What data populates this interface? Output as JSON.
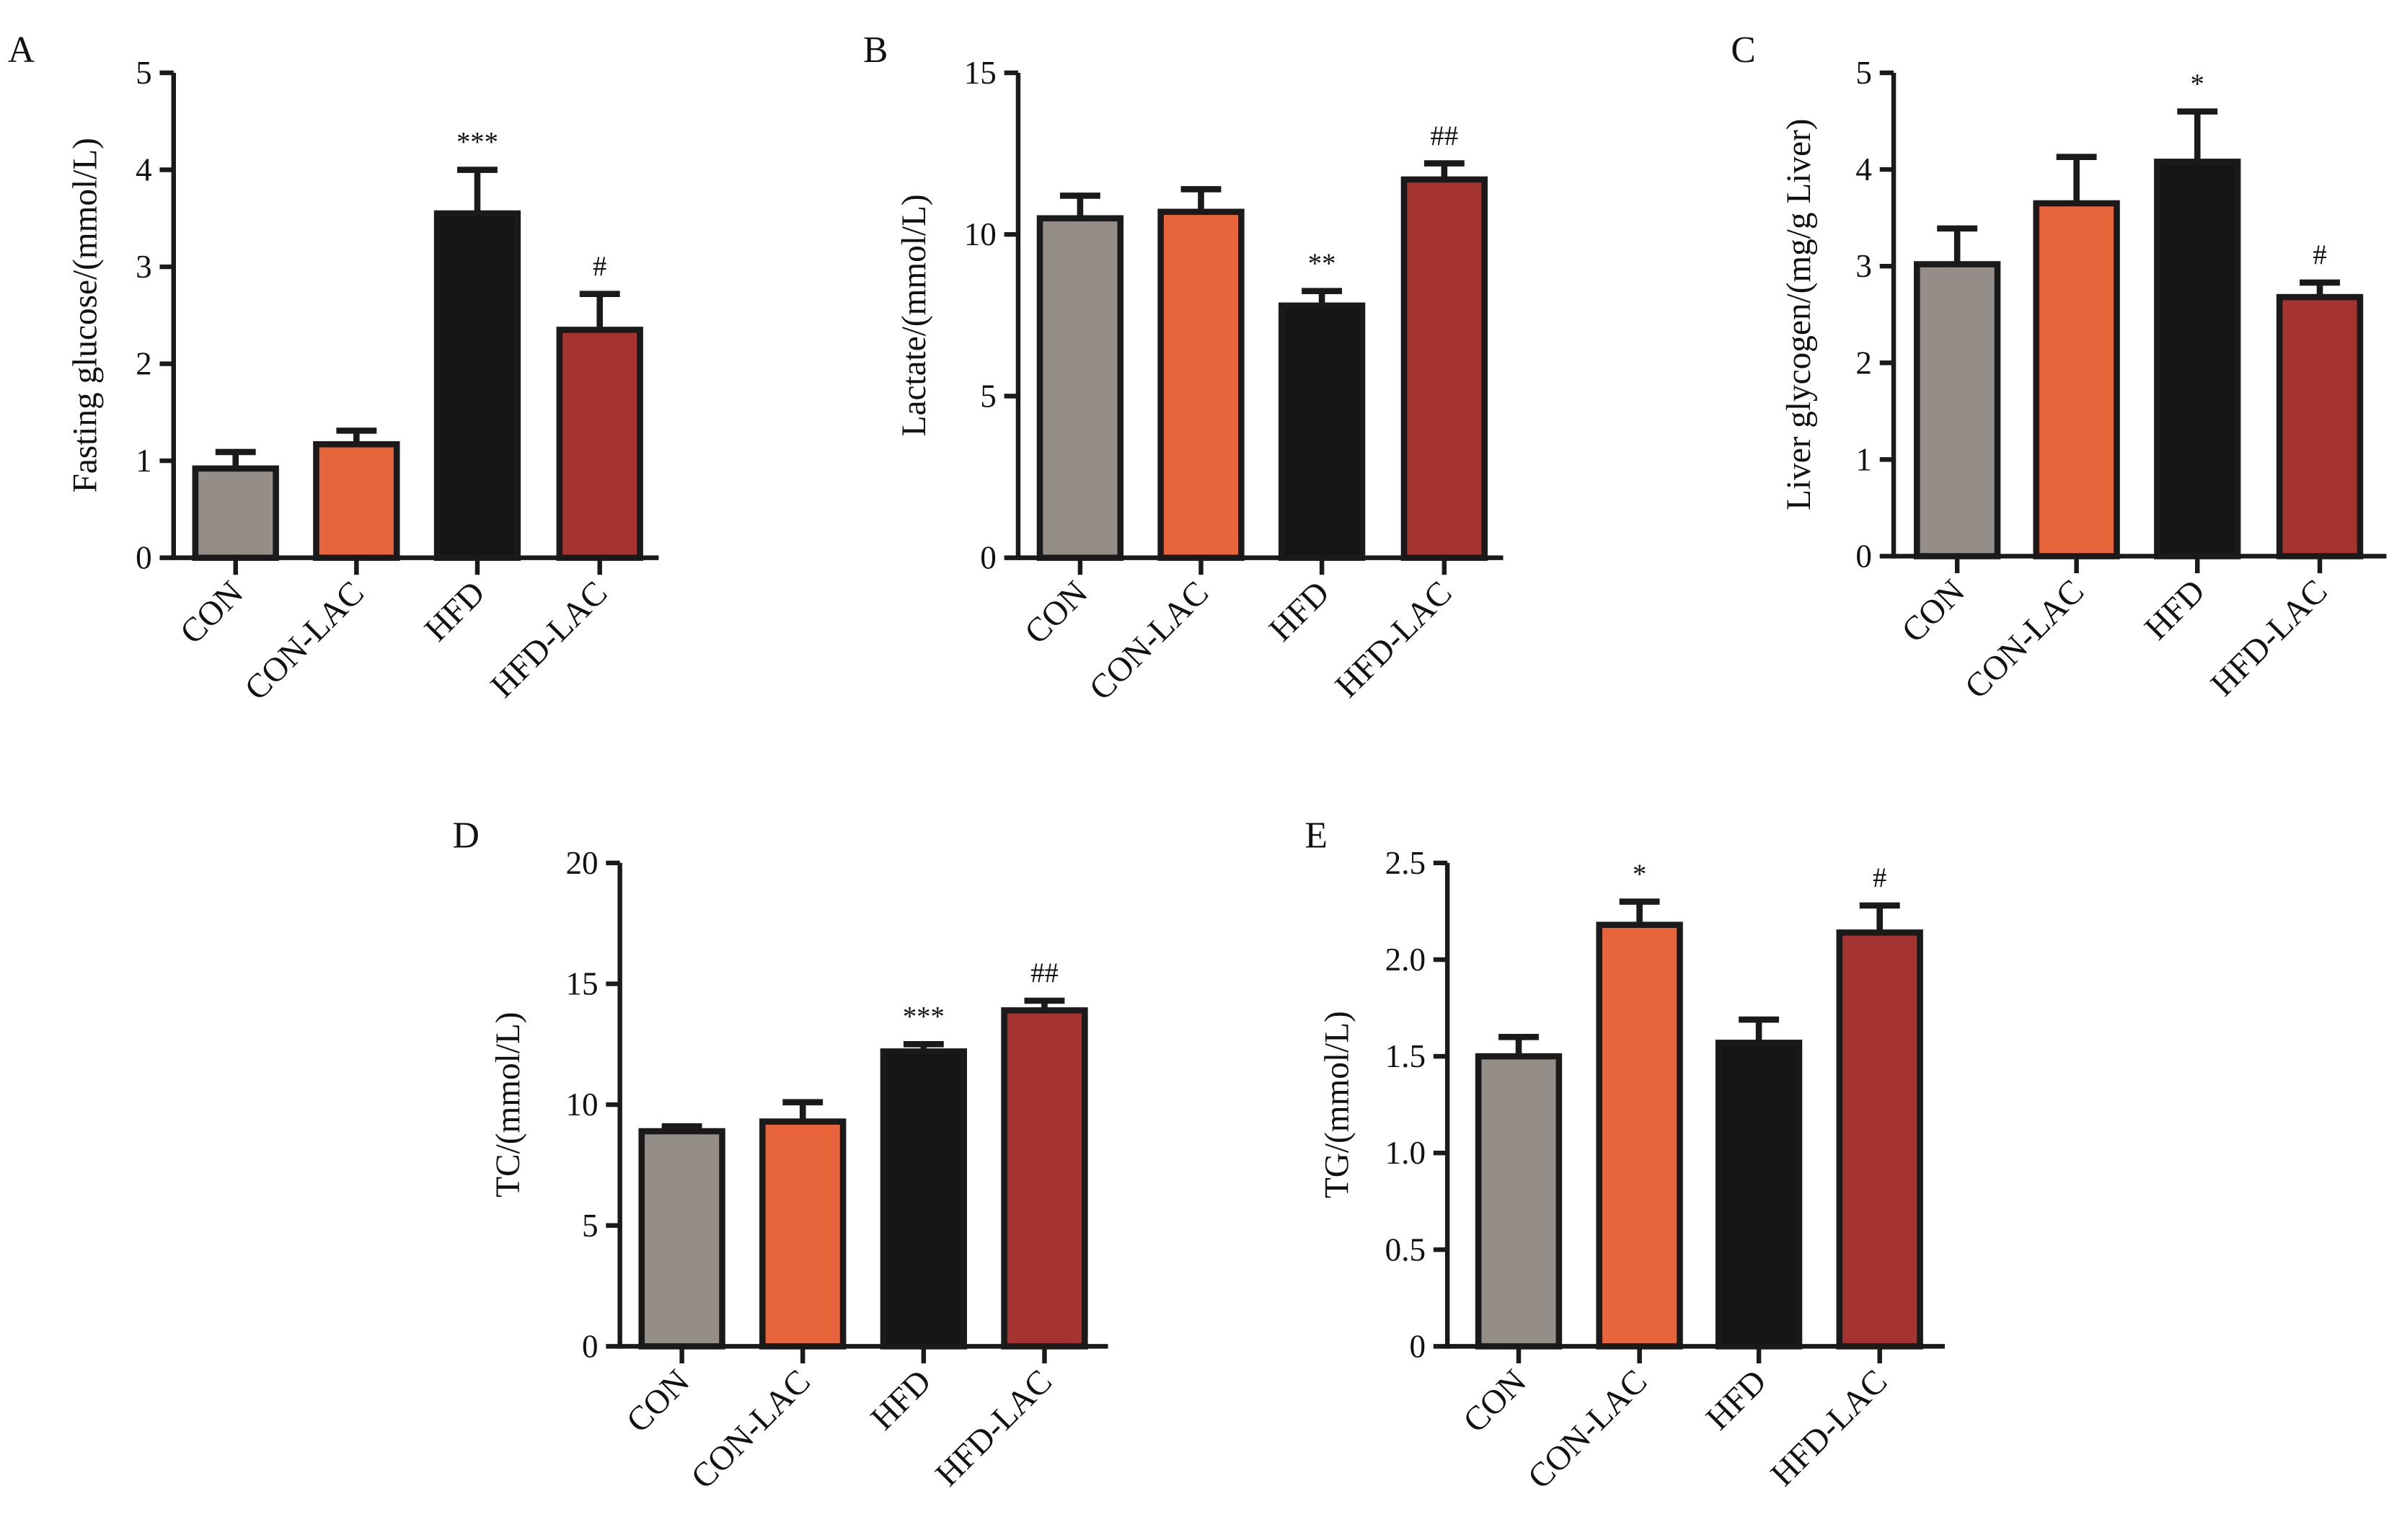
{
  "colors": {
    "CON": "#958d88",
    "CON-LAC": "#e8643a",
    "HFD": "#161514",
    "HFD-LAC": "#a53430",
    "outline": "#1a1a1a"
  },
  "chart_data": [
    {
      "type": "bar",
      "panel": "A",
      "ylabel": "Fasting glucose/(mmol/L)",
      "categories": [
        "CON",
        "CON-LAC",
        "HFD",
        "HFD-LAC"
      ],
      "values": [
        0.92,
        1.17,
        3.55,
        2.35
      ],
      "errors": [
        0.17,
        0.14,
        0.45,
        0.37
      ],
      "annotations": [
        "",
        "",
        "***",
        "#"
      ],
      "ylim": [
        0,
        5
      ],
      "yticks": [
        "0",
        "1",
        "2",
        "3",
        "4",
        "5"
      ],
      "grid": false
    },
    {
      "type": "bar",
      "panel": "B",
      "ylabel": "Lactate/(mmol/L)",
      "categories": [
        "CON",
        "CON-LAC",
        "HFD",
        "HFD-LAC"
      ],
      "values": [
        10.5,
        10.7,
        7.8,
        11.7
      ],
      "errors": [
        0.7,
        0.7,
        0.45,
        0.5
      ],
      "annotations": [
        "",
        "",
        "**",
        "##"
      ],
      "ylim": [
        0,
        15
      ],
      "yticks": [
        "0",
        "5",
        "10",
        "15"
      ],
      "grid": false
    },
    {
      "type": "bar",
      "panel": "C",
      "ylabel": "Liver glycogen/(mg/g Liver)",
      "categories": [
        "CON",
        "CON-LAC",
        "HFD",
        "HFD-LAC"
      ],
      "values": [
        3.02,
        3.65,
        4.08,
        2.68
      ],
      "errors": [
        0.37,
        0.48,
        0.52,
        0.15
      ],
      "annotations": [
        "",
        "",
        "*",
        "#"
      ],
      "ylim": [
        0,
        5
      ],
      "yticks": [
        "0",
        "1",
        "2",
        "3",
        "4",
        "5"
      ],
      "grid": false
    },
    {
      "type": "bar",
      "panel": "D",
      "ylabel": "TC/(mmol/L)",
      "categories": [
        "CON",
        "CON-LAC",
        "HFD",
        "HFD-LAC"
      ],
      "values": [
        8.9,
        9.3,
        12.2,
        13.9
      ],
      "errors": [
        0.2,
        0.8,
        0.3,
        0.4
      ],
      "annotations": [
        "",
        "",
        "***",
        "##"
      ],
      "ylim": [
        0,
        20
      ],
      "yticks": [
        "0",
        "5",
        "10",
        "15",
        "20"
      ],
      "grid": false
    },
    {
      "type": "bar",
      "panel": "E",
      "ylabel": "TG/(mmol/L)",
      "categories": [
        "CON",
        "CON-LAC",
        "HFD",
        "HFD-LAC"
      ],
      "values": [
        1.5,
        2.18,
        1.57,
        2.14
      ],
      "errors": [
        0.1,
        0.12,
        0.12,
        0.14
      ],
      "annotations": [
        "",
        "*",
        "",
        "#"
      ],
      "ylim": [
        0,
        2.5
      ],
      "yticks": [
        "0",
        "0.5",
        "1.0",
        "1.5",
        "2.0",
        "2.5"
      ],
      "grid": false
    }
  ]
}
